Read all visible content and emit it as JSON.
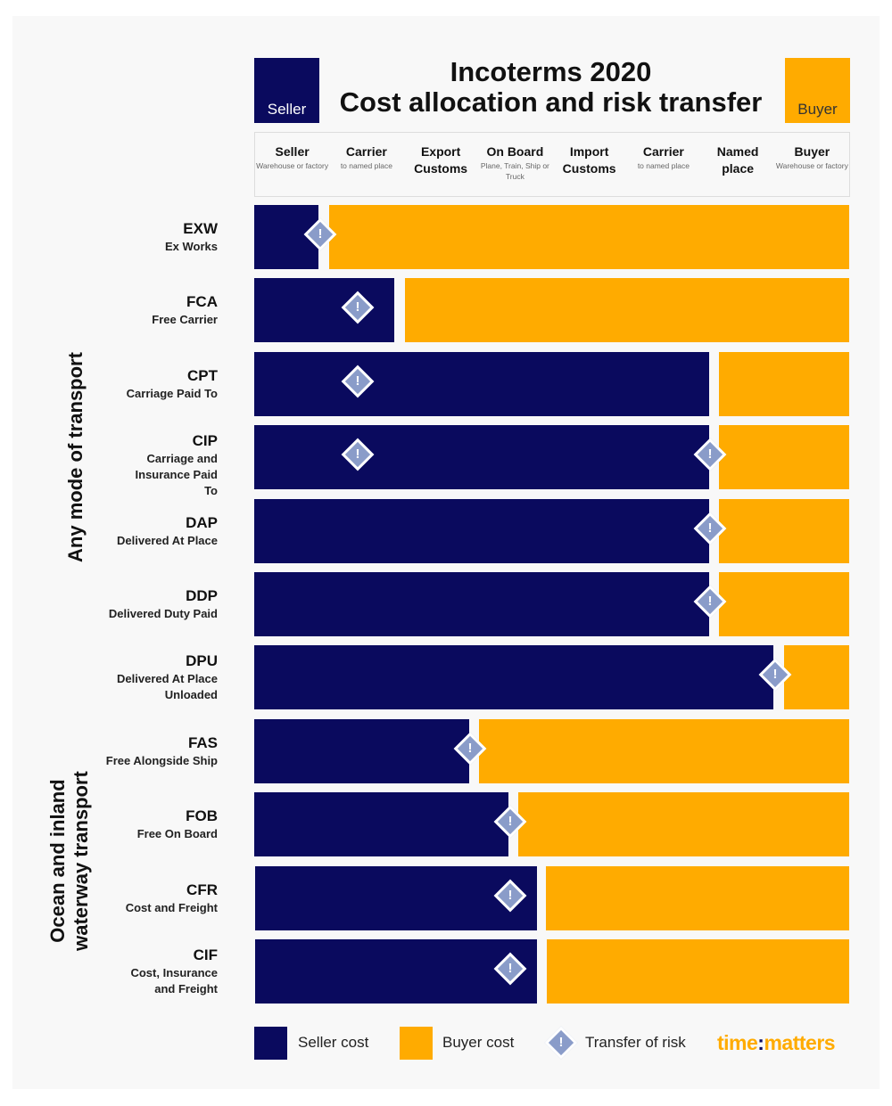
{
  "header": {
    "seller_label": "Seller",
    "buyer_label": "Buyer",
    "title_line1": "Incoterms 2020",
    "title_line2": "Cost allocation and risk transfer"
  },
  "stages": [
    {
      "name": "Seller",
      "sub": "Warehouse or factory"
    },
    {
      "name": "Carrier",
      "sub": "to named place"
    },
    {
      "name": "Export Customs",
      "sub": ""
    },
    {
      "name": "On Board",
      "sub": "Plane, Train, Ship or Truck"
    },
    {
      "name": "Import Customs",
      "sub": ""
    },
    {
      "name": "Carrier",
      "sub": "to named place"
    },
    {
      "name": "Named place",
      "sub": ""
    },
    {
      "name": "Buyer",
      "sub": "Warehouse or factory"
    }
  ],
  "groups": {
    "any": "Any mode of transport",
    "ocean_line1": "Ocean and inland",
    "ocean_line2": "waterway transport"
  },
  "terms": [
    {
      "code": "EXW",
      "name": "Ex Works"
    },
    {
      "code": "FCA",
      "name": "Free Carrier"
    },
    {
      "code": "CPT",
      "name": "Carriage Paid To"
    },
    {
      "code": "CIP",
      "name": "Carriage and Insurance Paid To"
    },
    {
      "code": "DAP",
      "name": "Delivered At Place"
    },
    {
      "code": "DDP",
      "name": "Delivered Duty Paid"
    },
    {
      "code": "DPU",
      "name": "Delivered At Place Unloaded"
    },
    {
      "code": "FAS",
      "name": "Free Alongside Ship"
    },
    {
      "code": "FOB",
      "name": "Free On Board"
    },
    {
      "code": "CFR",
      "name": "Cost and Freight"
    },
    {
      "code": "CIF",
      "name": "Cost, Insurance and Freight"
    }
  ],
  "risk_symbol": "!",
  "legend": {
    "seller": "Seller cost",
    "buyer": "Buyer cost",
    "risk": "Transfer of risk"
  },
  "logo": {
    "part1": "time",
    "colon": ":",
    "part2": "matters"
  },
  "colors": {
    "seller": "#0a0a5e",
    "buyer": "#ffab00",
    "risk": "#8a9cc9"
  }
}
